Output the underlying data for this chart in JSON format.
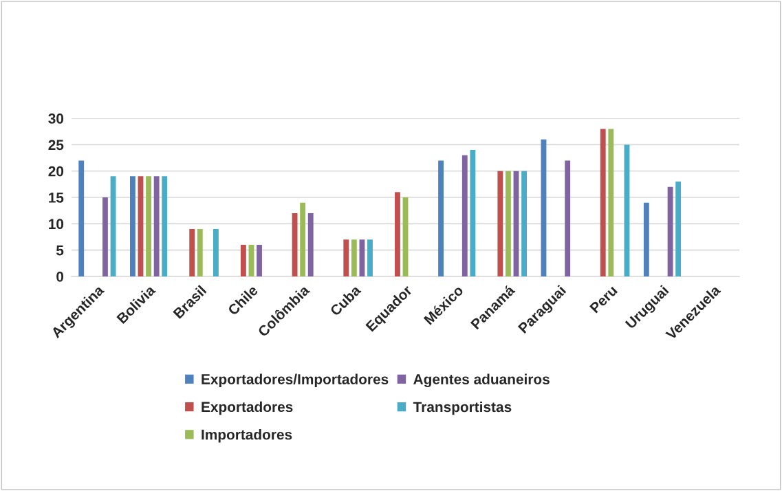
{
  "chart_data": {
    "type": "bar",
    "categories": [
      "Argentina",
      "Bolivia",
      "Brasil",
      "Chile",
      "Colômbia",
      "Cuba",
      "Equador",
      "México",
      "Panamá",
      "Paraguai",
      "Peru",
      "Uruguai",
      "Venezuela"
    ],
    "series": [
      {
        "name": "Exportadores/Importadores",
        "color": "#4f81bd",
        "values": [
          22,
          19,
          null,
          null,
          null,
          null,
          null,
          22,
          null,
          26,
          null,
          14,
          null
        ]
      },
      {
        "name": "Exportadores",
        "color": "#c0504d",
        "values": [
          null,
          19,
          9,
          6,
          12,
          7,
          16,
          null,
          20,
          null,
          28,
          null,
          null
        ]
      },
      {
        "name": "Importadores",
        "color": "#9bbb59",
        "values": [
          null,
          19,
          9,
          6,
          14,
          7,
          15,
          null,
          20,
          null,
          28,
          null,
          null
        ]
      },
      {
        "name": "Agentes aduaneiros",
        "color": "#8064a2",
        "values": [
          15,
          19,
          null,
          6,
          12,
          7,
          null,
          23,
          20,
          22,
          null,
          17,
          null
        ]
      },
      {
        "name": "Transportistas",
        "color": "#4bacc6",
        "values": [
          19,
          19,
          9,
          null,
          null,
          7,
          null,
          24,
          20,
          null,
          25,
          18,
          null
        ]
      }
    ],
    "ylim": [
      0,
      30
    ],
    "yticks": [
      0,
      5,
      10,
      15,
      20,
      25,
      30
    ],
    "grid": "y",
    "legend": "bottom"
  }
}
